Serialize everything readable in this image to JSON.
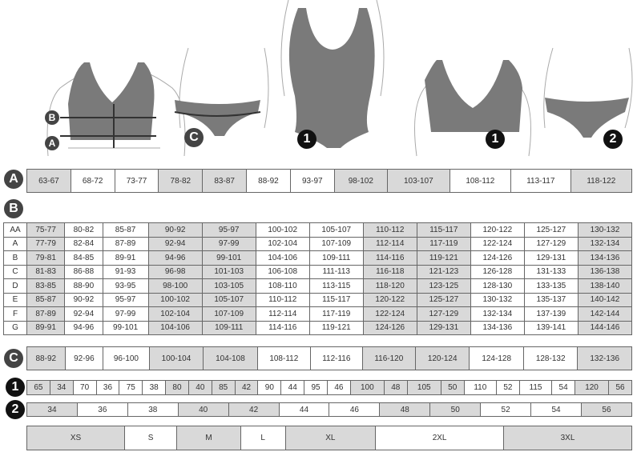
{
  "markers": {
    "a": "A",
    "b": "B",
    "c": "C",
    "one": "1",
    "two": "2"
  },
  "colors": {
    "shade": "#d9d9d9",
    "figure": "#7a7a7a",
    "badge": "#444444"
  },
  "shaded_columns": [
    0,
    3,
    4,
    7,
    8,
    11
  ],
  "row_a": [
    "63-67",
    "68-72",
    "73-77",
    "78-82",
    "83-87",
    "88-92",
    "93-97",
    "98-102",
    "103-107",
    "108-112",
    "113-117",
    "118-122"
  ],
  "table_b": [
    {
      "cup": "AA",
      "values": [
        "75-77",
        "80-82",
        "85-87",
        "90-92",
        "95-97",
        "100-102",
        "105-107",
        "110-112",
        "115-117",
        "120-122",
        "125-127",
        "130-132"
      ]
    },
    {
      "cup": "A",
      "values": [
        "77-79",
        "82-84",
        "87-89",
        "92-94",
        "97-99",
        "102-104",
        "107-109",
        "112-114",
        "117-119",
        "122-124",
        "127-129",
        "132-134"
      ]
    },
    {
      "cup": "B",
      "values": [
        "79-81",
        "84-85",
        "89-91",
        "94-96",
        "99-101",
        "104-106",
        "109-111",
        "114-116",
        "119-121",
        "124-126",
        "129-131",
        "134-136"
      ]
    },
    {
      "cup": "C",
      "values": [
        "81-83",
        "86-88",
        "91-93",
        "96-98",
        "101-103",
        "106-108",
        "111-113",
        "116-118",
        "121-123",
        "126-128",
        "131-133",
        "136-138"
      ]
    },
    {
      "cup": "D",
      "values": [
        "83-85",
        "88-90",
        "93-95",
        "98-100",
        "103-105",
        "108-110",
        "113-115",
        "118-120",
        "123-125",
        "128-130",
        "133-135",
        "138-140"
      ]
    },
    {
      "cup": "E",
      "values": [
        "85-87",
        "90-92",
        "95-97",
        "100-102",
        "105-107",
        "110-112",
        "115-117",
        "120-122",
        "125-127",
        "130-132",
        "135-137",
        "140-142"
      ]
    },
    {
      "cup": "F",
      "values": [
        "87-89",
        "92-94",
        "97-99",
        "102-104",
        "107-109",
        "112-114",
        "117-119",
        "122-124",
        "127-129",
        "132-134",
        "137-139",
        "142-144"
      ]
    },
    {
      "cup": "G",
      "values": [
        "89-91",
        "94-96",
        "99-101",
        "104-106",
        "109-111",
        "114-116",
        "119-121",
        "124-126",
        "129-131",
        "134-136",
        "139-141",
        "144-146"
      ]
    }
  ],
  "row_c": [
    "88-92",
    "92-96",
    "96-100",
    "100-104",
    "104-108",
    "108-112",
    "112-116",
    "116-120",
    "120-124",
    "124-128",
    "128-132",
    "132-136"
  ],
  "row_1": [
    [
      "65",
      "34"
    ],
    [
      "70",
      "36"
    ],
    [
      "75",
      "38"
    ],
    [
      "80",
      "40"
    ],
    [
      "85",
      "42"
    ],
    [
      "90",
      "44"
    ],
    [
      "95",
      "46"
    ],
    [
      "100",
      "48"
    ],
    [
      "105",
      "50"
    ],
    [
      "110",
      "52"
    ],
    [
      "115",
      "54"
    ],
    [
      "120",
      "56"
    ]
  ],
  "row_2": [
    "34",
    "36",
    "38",
    "40",
    "42",
    "44",
    "46",
    "48",
    "50",
    "52",
    "54",
    "56"
  ],
  "sizes": [
    {
      "label": "XS",
      "span": 1
    },
    {
      "label": "S",
      "span": 2
    },
    {
      "label": "M",
      "span": 2
    },
    {
      "label": "L",
      "span": 2
    },
    {
      "label": "XL",
      "span": 2
    },
    {
      "label": "2XL",
      "span": 2
    },
    {
      "label": "3XL",
      "span": 1
    }
  ]
}
